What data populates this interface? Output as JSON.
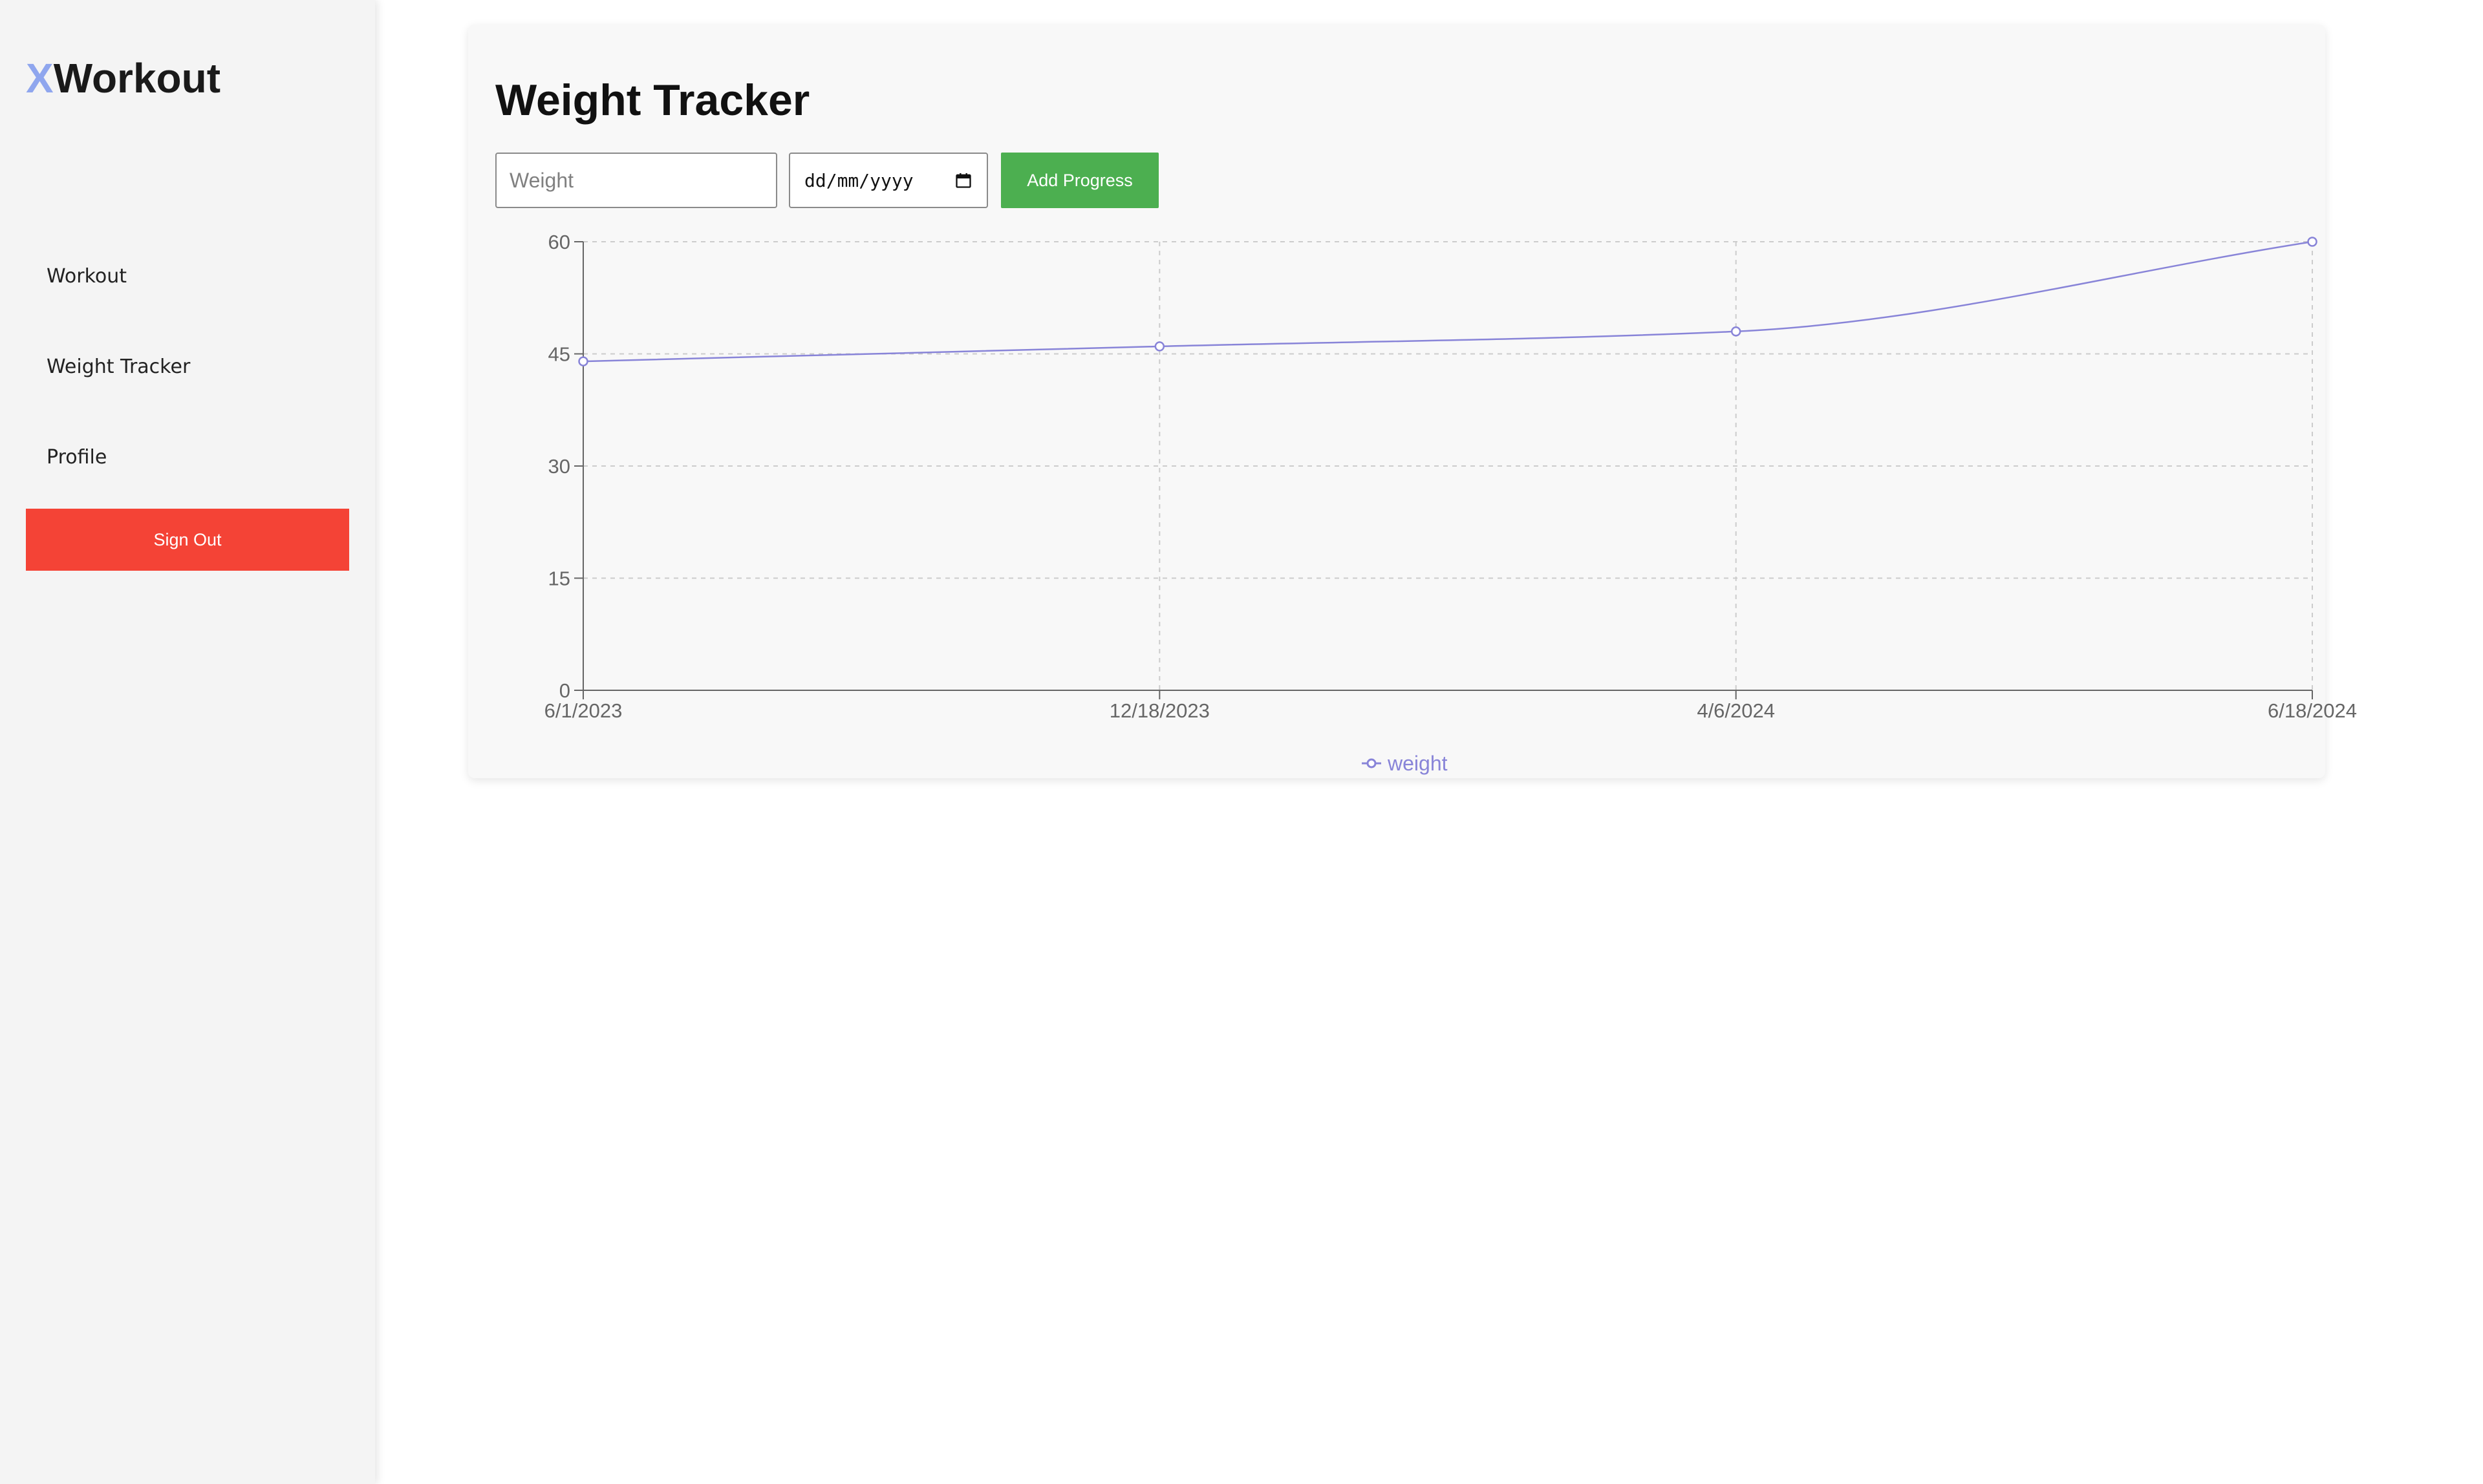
{
  "app": {
    "logo_x": "X",
    "logo_rest": "Workout"
  },
  "sidebar": {
    "items": [
      {
        "label": "Workout"
      },
      {
        "label": "Weight Tracker"
      },
      {
        "label": "Profile"
      }
    ],
    "signout_label": "Sign Out"
  },
  "main": {
    "title": "Weight Tracker",
    "weight_placeholder": "Weight",
    "date_value": "dd/mm/yyyy",
    "add_button_label": "Add Progress"
  },
  "colors": {
    "accent_x": "#8fa6ee",
    "signout": "#f44336",
    "add_button": "#4caf50",
    "line": "#8884d8"
  },
  "icons": {
    "date_picker": "calendar-icon"
  },
  "chart_data": {
    "type": "line",
    "title": "",
    "xlabel": "",
    "ylabel": "",
    "x": [
      "6/1/2023",
      "12/18/2023",
      "4/6/2024",
      "6/18/2024"
    ],
    "series": [
      {
        "name": "weight",
        "values": [
          44,
          46,
          48,
          60
        ]
      }
    ],
    "yticks": [
      0,
      15,
      30,
      45,
      60
    ],
    "ylim": [
      0,
      60
    ],
    "grid": true,
    "legend": "bottom-center",
    "curve": "monotone"
  }
}
